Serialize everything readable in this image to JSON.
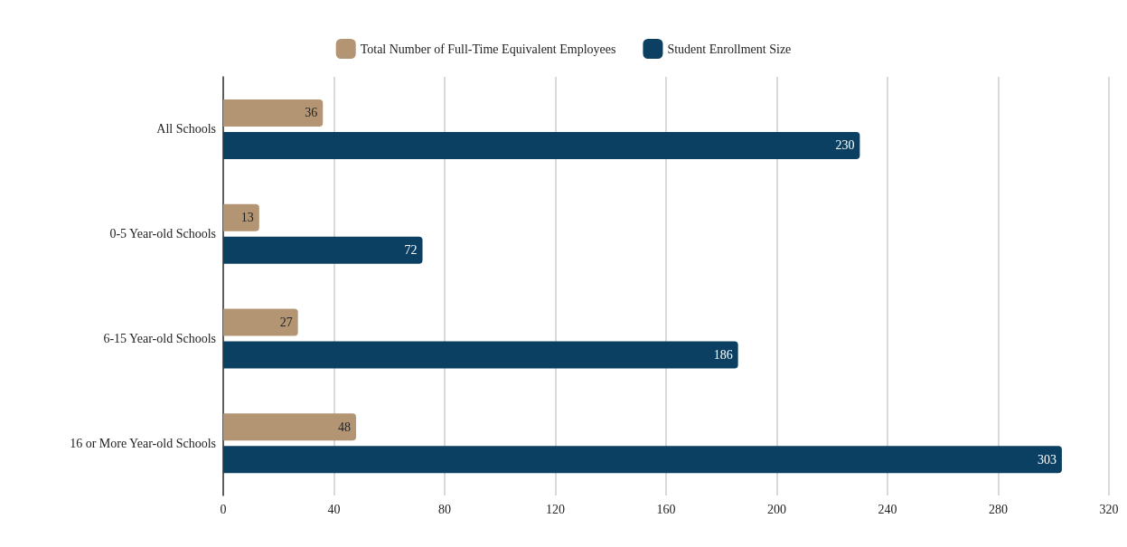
{
  "chart_data": {
    "type": "bar",
    "orientation": "horizontal",
    "categories": [
      "All Schools",
      "0-5 Year-old Schools",
      "6-15 Year-old Schools",
      "16 or More Year-old Schools"
    ],
    "series": [
      {
        "name": "Total Number of Full-Time Equivalent Employees",
        "color": "#b39574",
        "values": [
          36,
          13,
          27,
          48
        ]
      },
      {
        "name": "Student Enrollment Size",
        "color": "#0b4063",
        "values": [
          230,
          72,
          186,
          303
        ]
      }
    ],
    "xlim": [
      0,
      320
    ],
    "xticks": [
      0,
      40,
      80,
      120,
      160,
      200,
      240,
      280,
      320
    ],
    "grid": "x",
    "legend": "top",
    "data_labels": true
  }
}
